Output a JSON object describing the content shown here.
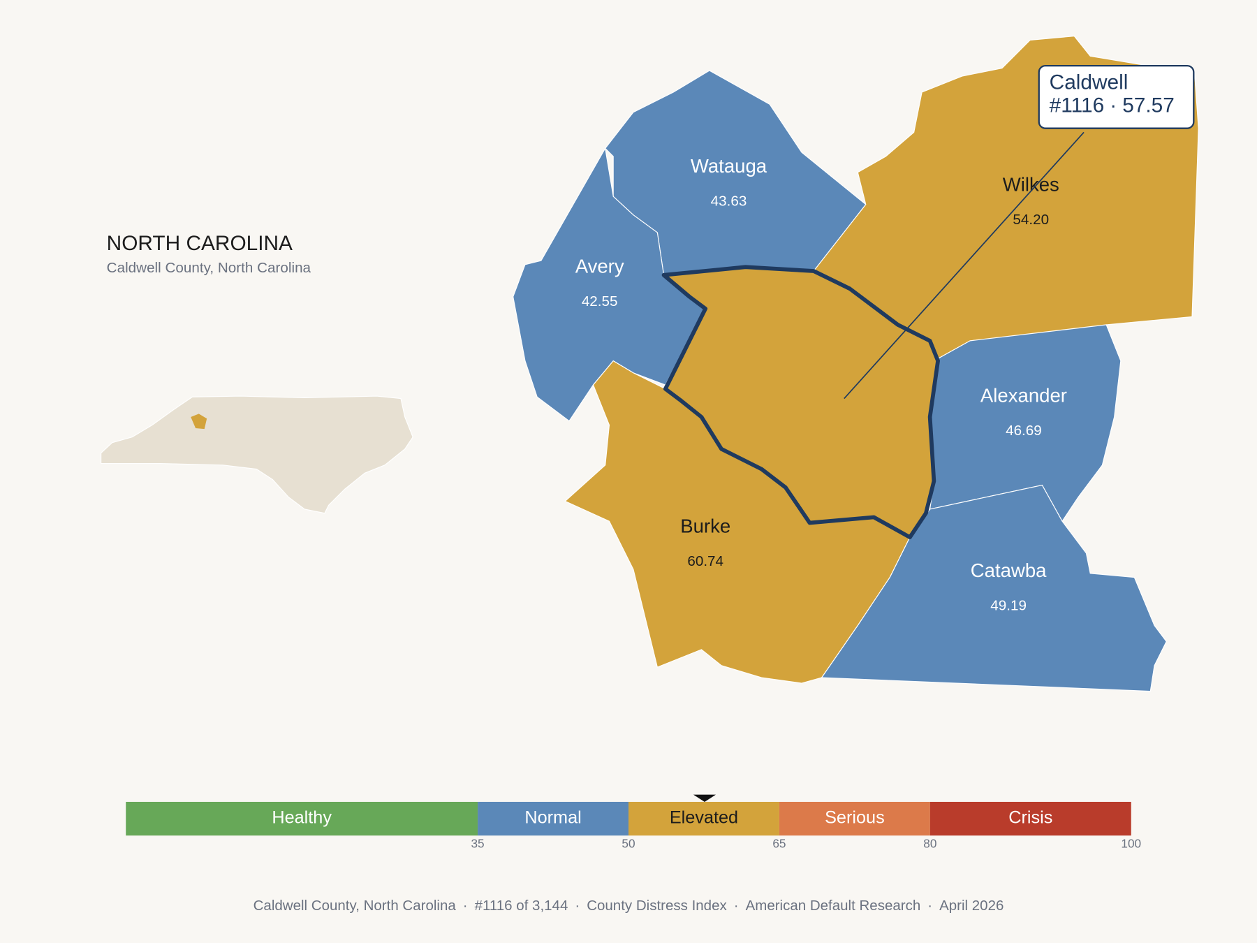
{
  "header": {
    "title": "NORTH CAROLINA",
    "subtitle": "Caldwell County, North Carolina"
  },
  "focus": {
    "name": "Caldwell",
    "rank": "#1116",
    "score": 57.57
  },
  "neighbors": [
    {
      "name": "Watauga",
      "score": 43.63
    },
    {
      "name": "Avery",
      "score": 42.55
    },
    {
      "name": "Wilkes",
      "score": {
        "value": 54.2,
        "label": "54.20"
      }
    },
    {
      "name": "Alexander",
      "score": 46.69
    },
    {
      "name": "Burke",
      "score": 60.74
    },
    {
      "name": "Catawba",
      "score": 49.19
    }
  ],
  "scale": {
    "lim": [
      0,
      100
    ],
    "ticks": [
      35,
      50,
      65,
      80,
      100
    ],
    "bands": [
      {
        "name": "Healthy",
        "color": "#67a858"
      },
      {
        "name": "Normal",
        "color": "#5b88b8"
      },
      {
        "name": "Elevated",
        "color": "#d3a33b"
      },
      {
        "name": "Serious",
        "color": "#dc7a4a"
      },
      {
        "name": "Crisis",
        "color": "#b93c2b"
      }
    ]
  },
  "separator": "·",
  "footer": [
    "Caldwell County, North Carolina",
    "#1116 of 3,144",
    "County Distress Index",
    "American Default Research",
    "April 2026"
  ]
}
